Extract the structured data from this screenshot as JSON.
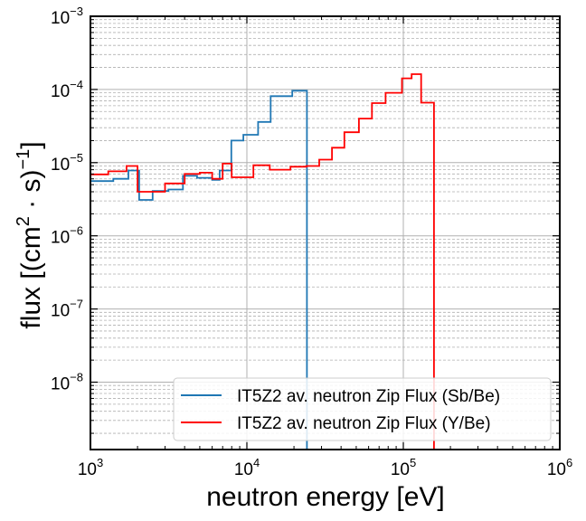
{
  "chart_data": {
    "type": "line",
    "xlabel": "neutron energy [eV]",
    "ylabel": "flux [(cm² · s)⁻¹]",
    "ylabel_parts": {
      "prefix": "flux [(cm",
      "sq": "2",
      "mid": " · s)",
      "inv": "−1",
      "suffix": "]"
    },
    "x_scale": "log",
    "y_scale": "log",
    "xlim": [
      1000,
      1000000
    ],
    "ylim": [
      1.2e-09,
      0.001
    ],
    "x_ticks": [
      {
        "value": 1000,
        "base": "10",
        "exp": "3"
      },
      {
        "value": 10000,
        "base": "10",
        "exp": "4"
      },
      {
        "value": 100000,
        "base": "10",
        "exp": "5"
      },
      {
        "value": 1000000,
        "base": "10",
        "exp": "6"
      }
    ],
    "y_ticks": [
      {
        "value": 1e-08,
        "base": "10",
        "exp": "−8"
      },
      {
        "value": 1e-07,
        "base": "10",
        "exp": "−7"
      },
      {
        "value": 1e-06,
        "base": "10",
        "exp": "−6"
      },
      {
        "value": 1e-05,
        "base": "10",
        "exp": "−5"
      },
      {
        "value": 0.0001,
        "base": "10",
        "exp": "−4"
      },
      {
        "value": 0.001,
        "base": "10",
        "exp": "−3"
      }
    ],
    "grid": true,
    "legend_position": "lower-right",
    "step_where": "post",
    "series": [
      {
        "name": "IT5Z2 av. neutron Zip Flux (Sb/Be)",
        "color": "#1f77b4",
        "x": [
          1000,
          1400,
          1750,
          2050,
          2500,
          3150,
          3900,
          4800,
          6000,
          6700,
          7950,
          9500,
          11800,
          14200,
          19500,
          24200
        ],
        "values": [
          5.6e-06,
          6e-06,
          7.8e-06,
          3.1e-06,
          4.1e-06,
          4.3e-06,
          6.6e-06,
          6.2e-06,
          5.8e-06,
          7.8e-06,
          2e-05,
          2.4e-05,
          3.6e-05,
          8.1e-05,
          9.6e-05,
          3.3e-05
        ],
        "end_drop_x": 24200
      },
      {
        "name": "IT5Z2 av. neutron Zip Flux (Y/Be)",
        "color": "#ff0000",
        "x": [
          1000,
          1300,
          1700,
          2000,
          3000,
          4000,
          5000,
          6000,
          7000,
          8000,
          11000,
          14000,
          19000,
          24000,
          29000,
          35000,
          42000,
          52000,
          63000,
          77000,
          98000,
          113000,
          130000,
          157000
        ],
        "values": [
          6.9e-06,
          7.6e-06,
          9e-06,
          4e-06,
          5.2e-06,
          7e-06,
          7.3e-06,
          6e-06,
          9.7e-06,
          6.3e-06,
          9.2e-06,
          8e-06,
          8.8e-06,
          9e-06,
          1.1e-05,
          1.6e-05,
          2.6e-05,
          4e-05,
          6.5e-05,
          9e-05,
          0.000142,
          0.000162,
          6.6e-05,
          6.6e-05
        ],
        "end_drop_x": 157000
      }
    ]
  }
}
